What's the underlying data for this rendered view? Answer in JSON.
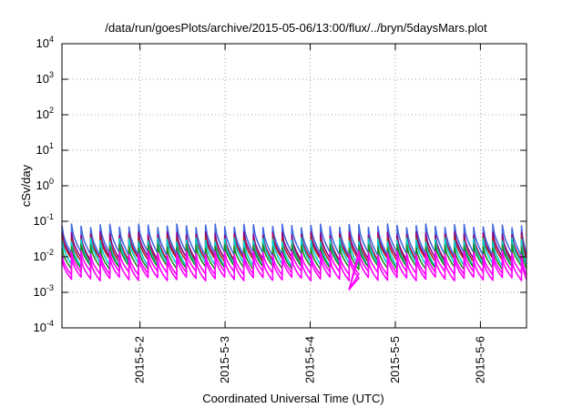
{
  "chart_data": {
    "type": "line",
    "title": "/data/run/goesPlots/archive/2015-05-06/13:00/flux/../bryn/5daysMars.plot",
    "xlabel": "Coordinated Universal Time (UTC)",
    "ylabel": "cSv/day",
    "yscale": "log",
    "ylim": [
      0.0001,
      10000
    ],
    "xlim": [
      "2015-05-01 02:00",
      "2015-05-06 13:00"
    ],
    "grid": true,
    "y_ticks": [
      {
        "base": "10",
        "exp": "-4"
      },
      {
        "base": "10",
        "exp": "-3"
      },
      {
        "base": "10",
        "exp": "-2"
      },
      {
        "base": "10",
        "exp": "-1"
      },
      {
        "base": "10",
        "exp": "0"
      },
      {
        "base": "10",
        "exp": "1"
      },
      {
        "base": "10",
        "exp": "2"
      },
      {
        "base": "10",
        "exp": "3"
      },
      {
        "base": "10",
        "exp": "4"
      }
    ],
    "x_ticks": [
      {
        "label": "2015-5-2",
        "date": "2015-05-02 00:00"
      },
      {
        "label": "2015-5-3",
        "date": "2015-05-03 00:00"
      },
      {
        "label": "2015-5-4",
        "date": "2015-05-04 00:00"
      },
      {
        "label": "2015-5-5",
        "date": "2015-05-05 00:00"
      },
      {
        "label": "2015-5-6",
        "date": "2015-05-06 00:00"
      }
    ],
    "pattern": {
      "cycle_hours": 2.7,
      "gap_dip": {
        "date": "2015-05-04 11:00",
        "value": 0.0012
      }
    },
    "series": [
      {
        "color": "#4169e1",
        "peak": 0.075,
        "trough": 0.012
      },
      {
        "color": "#8b008b",
        "peak": 0.045,
        "trough": 0.009
      },
      {
        "color": "#b22222",
        "peak": 0.035,
        "trough": 0.008
      },
      {
        "color": "#00ced1",
        "peak": 0.03,
        "trough": 0.006
      },
      {
        "color": "#228b22",
        "peak": 0.02,
        "trough": 0.005
      },
      {
        "color": "#ff00ff",
        "peak": 0.013,
        "trough": 0.0035
      },
      {
        "color": "#ff00ff",
        "peak": 0.009,
        "trough": 0.0024
      }
    ]
  }
}
